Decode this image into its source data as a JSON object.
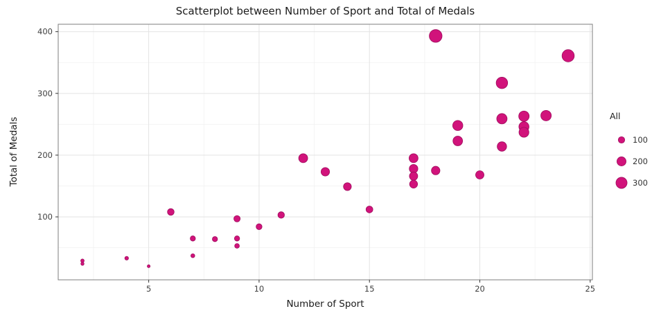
{
  "chart_data": {
    "type": "scatter",
    "title": "Scatterplot between Number of Sport and Total of Medals",
    "xlabel": "Number of Sport",
    "ylabel": "Total of Medals",
    "xlim": [
      0.9,
      25.1
    ],
    "ylim": [
      -2,
      412
    ],
    "x_ticks": [
      5,
      10,
      15,
      20,
      25
    ],
    "x_minor": [
      2.5,
      7.5,
      12.5,
      17.5,
      22.5
    ],
    "y_ticks": [
      100,
      200,
      300,
      400
    ],
    "y_minor": [
      50,
      150,
      250,
      350
    ],
    "grid": true,
    "legend": {
      "title": "All",
      "position": "right",
      "sizes": [
        100,
        200,
        300
      ]
    },
    "point_color": "#d1137b",
    "point_stroke": "#9e0c5d",
    "size_encoding": "point size proportional to y (Total of Medals)",
    "points": [
      [
        2,
        29
      ],
      [
        2,
        24
      ],
      [
        4,
        33
      ],
      [
        5,
        20
      ],
      [
        6,
        108
      ],
      [
        7,
        65
      ],
      [
        7,
        37
      ],
      [
        8,
        64
      ],
      [
        9,
        97
      ],
      [
        9,
        65
      ],
      [
        9,
        53
      ],
      [
        10,
        84
      ],
      [
        11,
        103
      ],
      [
        12,
        195
      ],
      [
        13,
        173
      ],
      [
        14,
        149
      ],
      [
        15,
        112
      ],
      [
        17,
        195
      ],
      [
        17,
        178
      ],
      [
        17,
        166
      ],
      [
        17,
        153
      ],
      [
        18,
        393
      ],
      [
        18,
        175
      ],
      [
        19,
        248
      ],
      [
        19,
        223
      ],
      [
        20,
        168
      ],
      [
        21,
        317
      ],
      [
        21,
        259
      ],
      [
        21,
        214
      ],
      [
        22,
        263
      ],
      [
        22,
        246
      ],
      [
        22,
        237
      ],
      [
        23,
        264
      ],
      [
        24,
        361
      ]
    ]
  }
}
